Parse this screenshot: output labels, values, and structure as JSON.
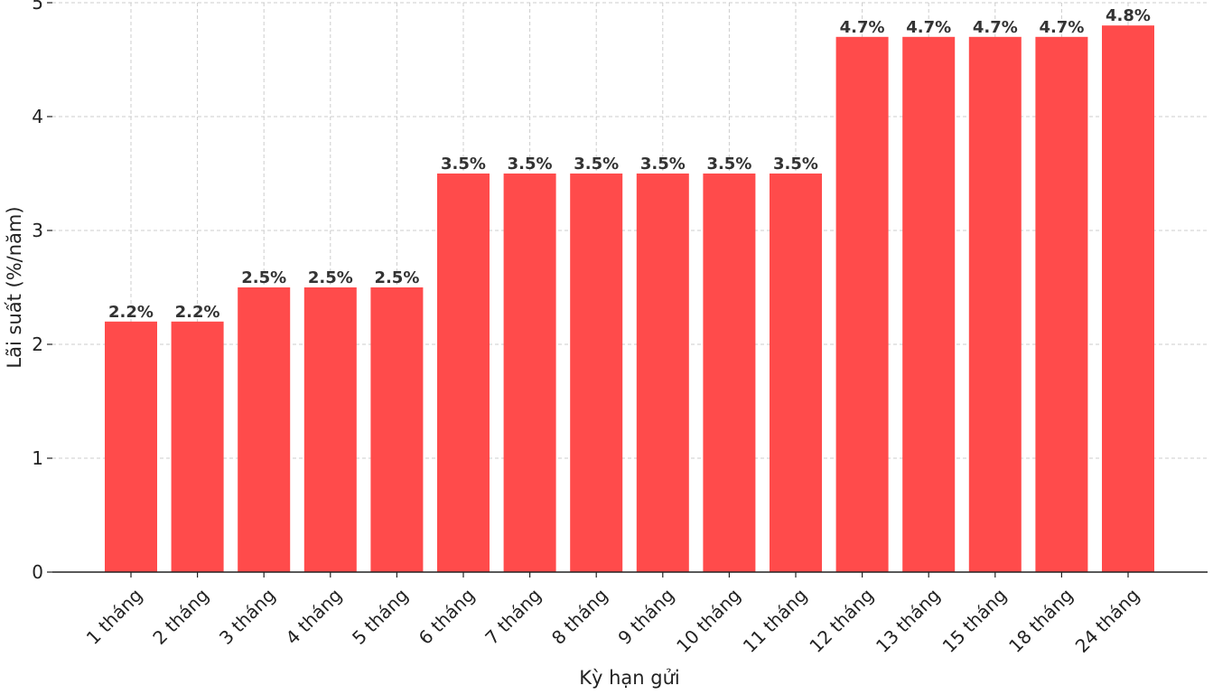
{
  "chart_data": {
    "type": "bar",
    "title": "",
    "xlabel": "Kỳ hạn gửi",
    "ylabel": "Lãi suất (%/năm)",
    "ylim": [
      0,
      5
    ],
    "yticks": [
      0,
      1,
      2,
      3,
      4,
      5
    ],
    "grid": true,
    "bar_color": "#ff4b4b",
    "categories": [
      "1 tháng",
      "2 tháng",
      "3 tháng",
      "4 tháng",
      "5 tháng",
      "6 tháng",
      "7 tháng",
      "8 tháng",
      "9 tháng",
      "10 tháng",
      "11 tháng",
      "12 tháng",
      "13 tháng",
      "15 tháng",
      "18 tháng",
      "24 tháng"
    ],
    "values": [
      2.2,
      2.2,
      2.5,
      2.5,
      2.5,
      3.5,
      3.5,
      3.5,
      3.5,
      3.5,
      3.5,
      4.7,
      4.7,
      4.7,
      4.7,
      4.8
    ],
    "data_labels": [
      "2.2%",
      "2.2%",
      "2.5%",
      "2.5%",
      "2.5%",
      "3.5%",
      "3.5%",
      "3.5%",
      "3.5%",
      "3.5%",
      "3.5%",
      "4.7%",
      "4.7%",
      "4.7%",
      "4.7%",
      "4.8%"
    ]
  }
}
